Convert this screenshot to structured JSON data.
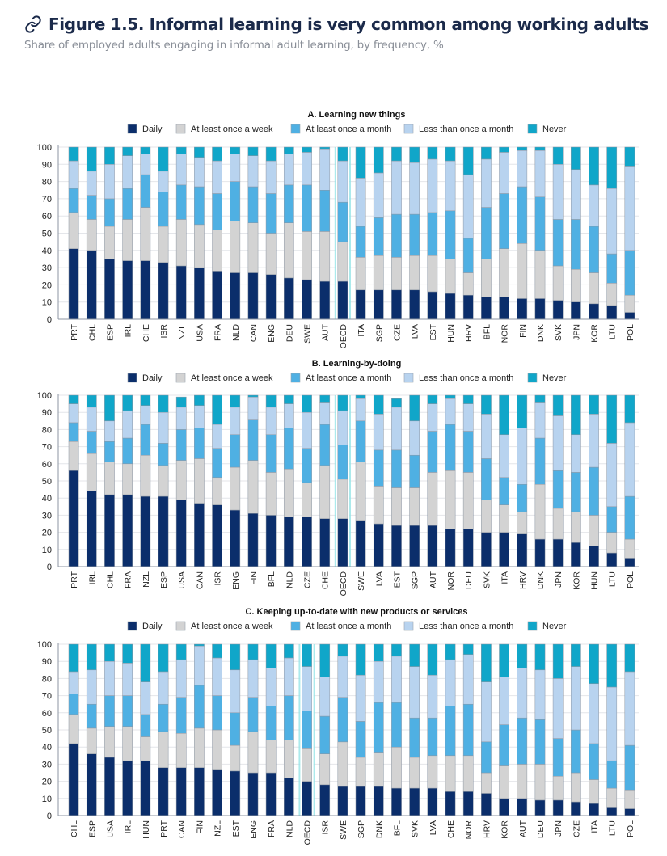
{
  "header": {
    "link_icon": "link-icon",
    "title": "Figure 1.5. Informal learning is very common among working adults",
    "subtitle": "Share of employed adults engaging in informal adult learning, by frequency, %"
  },
  "legend": [
    {
      "label": "Daily",
      "color": "#0b2e6b"
    },
    {
      "label": "At least once a week",
      "color": "#d3d3d3"
    },
    {
      "label": "At least once a month",
      "color": "#4fb0e3"
    },
    {
      "label": "Less than once a month",
      "color": "#b8d3ef"
    },
    {
      "label": "Never",
      "color": "#10a6c9"
    }
  ],
  "highlight_color": "#8fe3e6",
  "chart_data": [
    {
      "type": "bar",
      "stacked": true,
      "title": "A. Learning new things",
      "xlabel": "",
      "ylabel": "",
      "ylim": [
        0,
        100
      ],
      "yticks": [
        0,
        10,
        20,
        30,
        40,
        50,
        60,
        70,
        80,
        90,
        100
      ],
      "grid": true,
      "legend_position": "top",
      "highlight": "OECD",
      "categories": [
        "PRT",
        "CHL",
        "ESP",
        "IRL",
        "CHE",
        "ISR",
        "NZL",
        "USA",
        "FRA",
        "NLD",
        "CAN",
        "ENG",
        "DEU",
        "SWE",
        "AUT",
        "OECD",
        "ITA",
        "SGP",
        "CZE",
        "LVA",
        "EST",
        "HUN",
        "HRV",
        "BFL",
        "NOR",
        "FIN",
        "DNK",
        "SVK",
        "JPN",
        "KOR",
        "LTU",
        "POL"
      ],
      "series": [
        {
          "name": "Daily",
          "values": [
            41,
            40,
            35,
            34,
            34,
            33,
            31,
            30,
            28,
            27,
            27,
            26,
            24,
            23,
            22,
            22,
            17,
            17,
            17,
            17,
            16,
            15,
            14,
            13,
            13,
            12,
            12,
            11,
            10,
            9,
            8,
            4
          ]
        },
        {
          "name": "At least once a week",
          "values": [
            21,
            18,
            19,
            24,
            31,
            21,
            27,
            25,
            24,
            30,
            29,
            24,
            32,
            28,
            29,
            23,
            19,
            20,
            19,
            20,
            21,
            20,
            13,
            22,
            28,
            32,
            28,
            20,
            19,
            18,
            13,
            10
          ]
        },
        {
          "name": "At least once a month",
          "values": [
            14,
            14,
            16,
            18,
            19,
            20,
            20,
            22,
            21,
            23,
            21,
            23,
            22,
            27,
            24,
            23,
            18,
            22,
            25,
            24,
            25,
            28,
            20,
            30,
            32,
            33,
            31,
            27,
            29,
            27,
            17,
            26
          ]
        },
        {
          "name": "Less than once a month",
          "values": [
            16,
            14,
            20,
            19,
            12,
            12,
            18,
            17,
            19,
            16,
            18,
            19,
            18,
            19,
            24,
            24,
            28,
            26,
            31,
            30,
            31,
            29,
            37,
            28,
            24,
            21,
            27,
            32,
            29,
            24,
            38,
            49
          ]
        },
        {
          "name": "Never",
          "values": [
            8,
            14,
            10,
            5,
            4,
            14,
            4,
            6,
            8,
            4,
            5,
            8,
            4,
            3,
            1,
            8,
            18,
            15,
            8,
            9,
            7,
            8,
            16,
            7,
            3,
            2,
            2,
            10,
            13,
            22,
            24,
            11
          ]
        }
      ]
    },
    {
      "type": "bar",
      "stacked": true,
      "title": "B. Learning-by-doing",
      "xlabel": "",
      "ylabel": "",
      "ylim": [
        0,
        100
      ],
      "yticks": [
        0,
        10,
        20,
        30,
        40,
        50,
        60,
        70,
        80,
        90,
        100
      ],
      "grid": true,
      "legend_position": "top",
      "highlight": "OECD",
      "categories": [
        "PRT",
        "IRL",
        "CHL",
        "FRA",
        "NZL",
        "ESP",
        "USA",
        "CAN",
        "ISR",
        "ENG",
        "FIN",
        "BFL",
        "NLD",
        "CZE",
        "CHE",
        "OECD",
        "SWE",
        "LVA",
        "EST",
        "SGP",
        "AUT",
        "NOR",
        "DEU",
        "SVK",
        "ITA",
        "HRV",
        "DNK",
        "JPN",
        "KOR",
        "HUN",
        "LTU",
        "POL"
      ],
      "series": [
        {
          "name": "Daily",
          "values": [
            56,
            44,
            42,
            42,
            41,
            41,
            39,
            37,
            36,
            33,
            31,
            30,
            29,
            29,
            28,
            28,
            27,
            25,
            24,
            24,
            24,
            22,
            22,
            20,
            20,
            19,
            16,
            16,
            14,
            12,
            8,
            5
          ]
        },
        {
          "name": "At least once a week",
          "values": [
            17,
            22,
            19,
            18,
            24,
            18,
            23,
            26,
            16,
            25,
            31,
            25,
            28,
            20,
            31,
            23,
            34,
            22,
            22,
            22,
            31,
            34,
            33,
            19,
            16,
            13,
            32,
            18,
            18,
            18,
            12,
            11
          ]
        },
        {
          "name": "At least once a month",
          "values": [
            11,
            13,
            12,
            15,
            18,
            13,
            18,
            18,
            17,
            19,
            24,
            22,
            24,
            20,
            24,
            20,
            24,
            21,
            22,
            19,
            24,
            27,
            24,
            24,
            16,
            16,
            27,
            22,
            23,
            28,
            15,
            25
          ]
        },
        {
          "name": "Less than once a month",
          "values": [
            11,
            14,
            12,
            16,
            11,
            18,
            13,
            13,
            14,
            16,
            13,
            16,
            14,
            21,
            13,
            20,
            13,
            21,
            25,
            20,
            16,
            15,
            16,
            26,
            25,
            33,
            21,
            32,
            22,
            31,
            37,
            43
          ]
        },
        {
          "name": "Never",
          "values": [
            5,
            7,
            15,
            9,
            6,
            10,
            6,
            6,
            17,
            7,
            1,
            7,
            5,
            10,
            4,
            9,
            2,
            11,
            5,
            15,
            5,
            2,
            5,
            11,
            23,
            19,
            4,
            12,
            23,
            11,
            28,
            16
          ]
        }
      ]
    },
    {
      "type": "bar",
      "stacked": true,
      "title": "C. Keeping up-to-date with new products or services",
      "xlabel": "",
      "ylabel": "",
      "ylim": [
        0,
        100
      ],
      "yticks": [
        0,
        10,
        20,
        30,
        40,
        50,
        60,
        70,
        80,
        90,
        100
      ],
      "grid": true,
      "legend_position": "top",
      "highlight": "OECD",
      "categories": [
        "CHL",
        "ESP",
        "USA",
        "IRL",
        "HUN",
        "PRT",
        "CAN",
        "FIN",
        "NZL",
        "EST",
        "ENG",
        "FRA",
        "NLD",
        "OECD",
        "ISR",
        "SWE",
        "SGP",
        "DNK",
        "BFL",
        "SVK",
        "LVA",
        "CHE",
        "NOR",
        "HRV",
        "KOR",
        "AUT",
        "DEU",
        "JPN",
        "CZE",
        "ITA",
        "LTU",
        "POL"
      ],
      "series": [
        {
          "name": "Daily",
          "values": [
            42,
            36,
            34,
            32,
            32,
            28,
            28,
            28,
            27,
            26,
            25,
            25,
            22,
            20,
            18,
            17,
            17,
            17,
            16,
            16,
            16,
            14,
            14,
            13,
            10,
            10,
            9,
            9,
            8,
            7,
            5,
            4
          ]
        },
        {
          "name": "At least once a week",
          "values": [
            17,
            15,
            18,
            20,
            14,
            21,
            20,
            23,
            23,
            15,
            24,
            19,
            22,
            19,
            18,
            26,
            17,
            20,
            24,
            18,
            19,
            21,
            21,
            12,
            19,
            20,
            21,
            14,
            17,
            14,
            11,
            11
          ]
        },
        {
          "name": "At least once a month",
          "values": [
            12,
            14,
            18,
            18,
            13,
            16,
            21,
            25,
            20,
            19,
            20,
            20,
            26,
            22,
            22,
            26,
            21,
            29,
            26,
            23,
            22,
            29,
            30,
            18,
            24,
            27,
            26,
            22,
            25,
            21,
            16,
            26
          ]
        },
        {
          "name": "Less than once a month",
          "values": [
            13,
            20,
            20,
            19,
            19,
            19,
            22,
            23,
            22,
            25,
            22,
            22,
            22,
            26,
            23,
            24,
            27,
            24,
            27,
            30,
            25,
            27,
            29,
            35,
            28,
            29,
            29,
            35,
            37,
            35,
            43,
            43
          ]
        },
        {
          "name": "Never",
          "values": [
            16,
            15,
            10,
            11,
            22,
            16,
            9,
            1,
            8,
            15,
            9,
            14,
            8,
            13,
            19,
            7,
            18,
            10,
            7,
            13,
            18,
            9,
            6,
            22,
            19,
            14,
            15,
            20,
            13,
            23,
            25,
            16
          ]
        }
      ]
    }
  ]
}
